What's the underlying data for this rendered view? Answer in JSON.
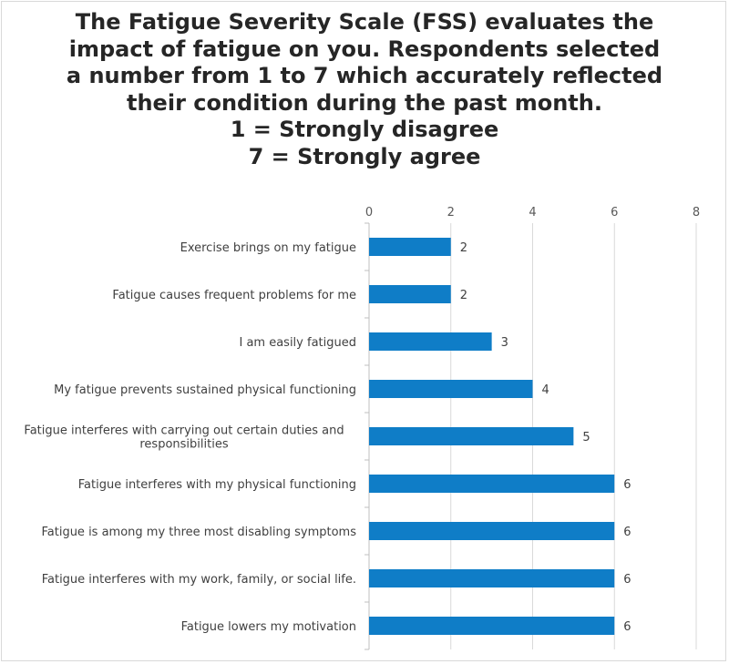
{
  "title_lines": [
    "The Fatigue Severity Scale (FSS) evaluates the",
    "impact of fatigue on you. Respondents selected",
    "a number from 1 to 7 which accurately reflected",
    "their condition during the past month.",
    "1 = Strongly disagree",
    "7 = Strongly agree"
  ],
  "colors": {
    "bar": "#0f7dc7",
    "grid": "#d9d9d9",
    "axis": "#bfbfbf"
  },
  "chart_data": {
    "type": "bar",
    "orientation": "horizontal",
    "title": "The Fatigue Severity Scale (FSS) evaluates the impact of fatigue on you. Respondents selected a number from 1 to 7 which accurately reflected their condition during the past month. 1 = Strongly disagree 7 = Strongly agree",
    "categories": [
      [
        "Exercise brings on my fatigue"
      ],
      [
        "Fatigue causes frequent problems for me"
      ],
      [
        "I am easily fatigued"
      ],
      [
        "My fatigue prevents sustained physical functioning"
      ],
      [
        "Fatigue interferes with carrying out certain duties and",
        "responsibilities"
      ],
      [
        "Fatigue interferes with my physical functioning"
      ],
      [
        "Fatigue is among my three most disabling symptoms"
      ],
      [
        "Fatigue interferes with my work, family, or social life."
      ],
      [
        "Fatigue lowers my motivation"
      ]
    ],
    "values": [
      2,
      2,
      3,
      4,
      5,
      6,
      6,
      6,
      6
    ],
    "xlim": [
      0,
      8
    ],
    "xticks": [
      0,
      2,
      4,
      6,
      8
    ],
    "axis_position": "top",
    "grid": true,
    "data_labels": true,
    "legend": "none"
  }
}
